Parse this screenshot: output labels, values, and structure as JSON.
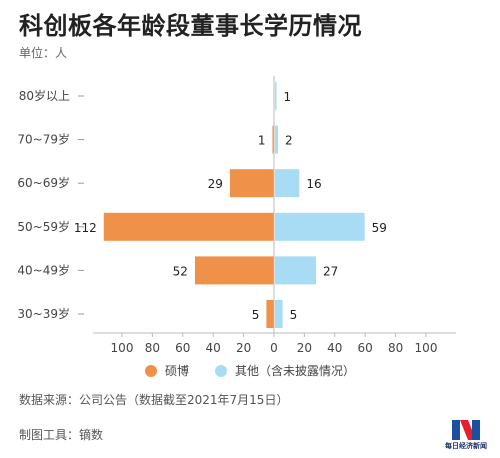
{
  "title": "科创板各年龄段董事长学历情况",
  "unit": "单位：人",
  "chart_data": {
    "type": "bar",
    "orientation": "horizontal-diverging",
    "categories": [
      "80岁以上",
      "70~79岁",
      "60~69岁",
      "50~59岁",
      "40~49岁",
      "30~39岁"
    ],
    "series": [
      {
        "name": "硕博",
        "values": [
          0,
          1,
          29,
          112,
          52,
          5
        ],
        "color": "#f0914a",
        "side": "left"
      },
      {
        "name": "其他（含未披露情况）",
        "values": [
          1,
          2,
          16,
          59,
          27,
          5
        ],
        "color": "#a8dcf4",
        "side": "right"
      }
    ],
    "value_labels_left": [
      "",
      "1",
      "29",
      "112",
      "52",
      "5"
    ],
    "value_labels_right": [
      "1",
      "2",
      "16",
      "59",
      "27",
      "5"
    ],
    "x_ticks": [
      "100",
      "80",
      "60",
      "40",
      "20",
      "0",
      "20",
      "40",
      "60",
      "80",
      "100"
    ],
    "xlim": [
      -120,
      120
    ],
    "grid": false,
    "legend_position": "bottom"
  },
  "legend": {
    "items": [
      {
        "label": "硕博",
        "color": "#f0914a"
      },
      {
        "label": "其他（含未披露情况）",
        "color": "#a8dcf4"
      }
    ]
  },
  "source": "数据来源：公司公告（数据截至2021年7月15日）",
  "maker": "制图工具：镝数",
  "brand": {
    "name": "每日经济新闻",
    "colors": {
      "red": "#e5202e",
      "blue": "#1b4fa0"
    }
  }
}
